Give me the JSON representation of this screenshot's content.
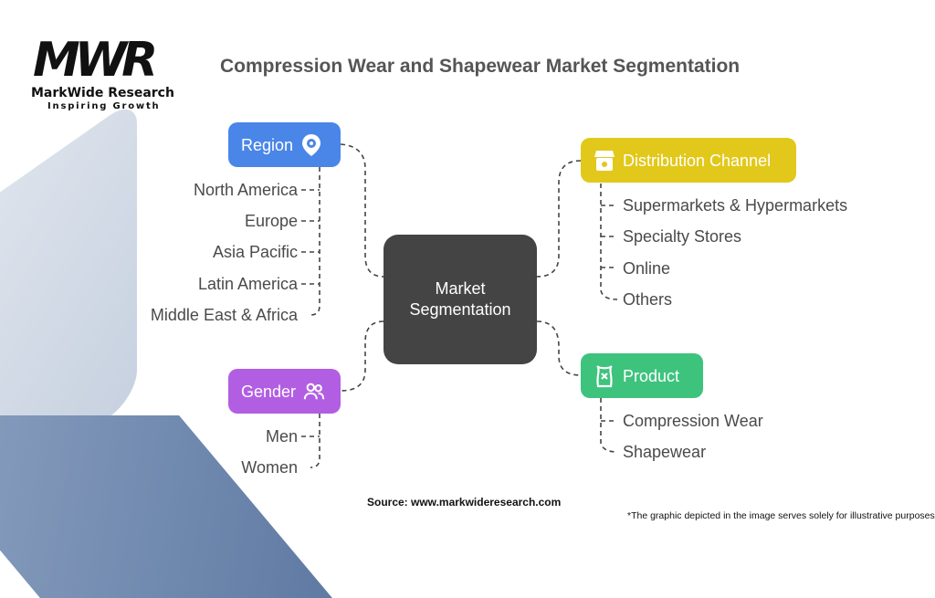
{
  "logo": {
    "mark": "MWR",
    "name": "MarkWide Research",
    "tagline": "Inspiring Growth"
  },
  "title": "Compression Wear and Shapewear Market Segmentation",
  "center": {
    "line1": "Market",
    "line2": "Segmentation"
  },
  "region": {
    "label": "Region",
    "color": "#4a86e8",
    "icon": "location-gear-icon",
    "items": [
      "North America",
      "Europe",
      "Asia Pacific",
      "Latin America",
      "Middle East & Africa"
    ]
  },
  "gender": {
    "label": "Gender",
    "color": "#b25ee3",
    "icon": "users-icon",
    "items": [
      "Men",
      "Women"
    ]
  },
  "distribution": {
    "label": "Distribution Channel",
    "color": "#e2c81a",
    "icon": "storefront-icon",
    "items": [
      "Supermarkets & Hypermarkets",
      "Specialty Stores",
      "Online",
      "Others"
    ]
  },
  "product": {
    "label": "Product",
    "color": "#3ec37d",
    "icon": "corset-icon",
    "items": [
      "Compression Wear",
      "Shapewear"
    ]
  },
  "source": "Source: www.markwideresearch.com",
  "note": "*The graphic depicted in the image serves solely for illustrative purposes"
}
